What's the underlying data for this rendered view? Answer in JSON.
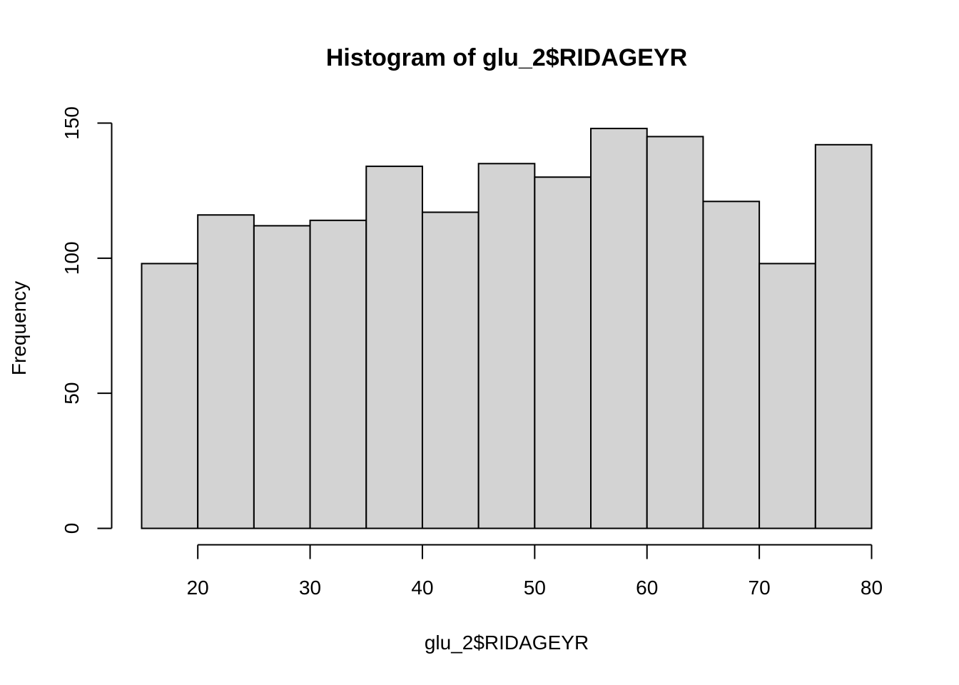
{
  "chart_data": {
    "type": "bar",
    "title": "Histogram of glu_2$RIDAGEYR",
    "xlabel": "glu_2$RIDAGEYR",
    "ylabel": "Frequency",
    "bins": [
      {
        "from": 15,
        "to": 20,
        "count": 98
      },
      {
        "from": 20,
        "to": 25,
        "count": 116
      },
      {
        "from": 25,
        "to": 30,
        "count": 112
      },
      {
        "from": 30,
        "to": 35,
        "count": 114
      },
      {
        "from": 35,
        "to": 40,
        "count": 134
      },
      {
        "from": 40,
        "to": 45,
        "count": 117
      },
      {
        "from": 45,
        "to": 50,
        "count": 135
      },
      {
        "from": 50,
        "to": 55,
        "count": 130
      },
      {
        "from": 55,
        "to": 60,
        "count": 148
      },
      {
        "from": 60,
        "to": 65,
        "count": 145
      },
      {
        "from": 65,
        "to": 70,
        "count": 121
      },
      {
        "from": 70,
        "to": 75,
        "count": 98
      },
      {
        "from": 75,
        "to": 80,
        "count": 142
      }
    ],
    "x_ticks": [
      "20",
      "30",
      "40",
      "50",
      "60",
      "70",
      "80"
    ],
    "y_ticks": [
      "0",
      "50",
      "100",
      "150"
    ],
    "xlim": [
      15,
      80
    ],
    "ylim": [
      0,
      150
    ],
    "grid": false,
    "bar_color": "#d3d3d3",
    "edge_color": "#000000"
  }
}
